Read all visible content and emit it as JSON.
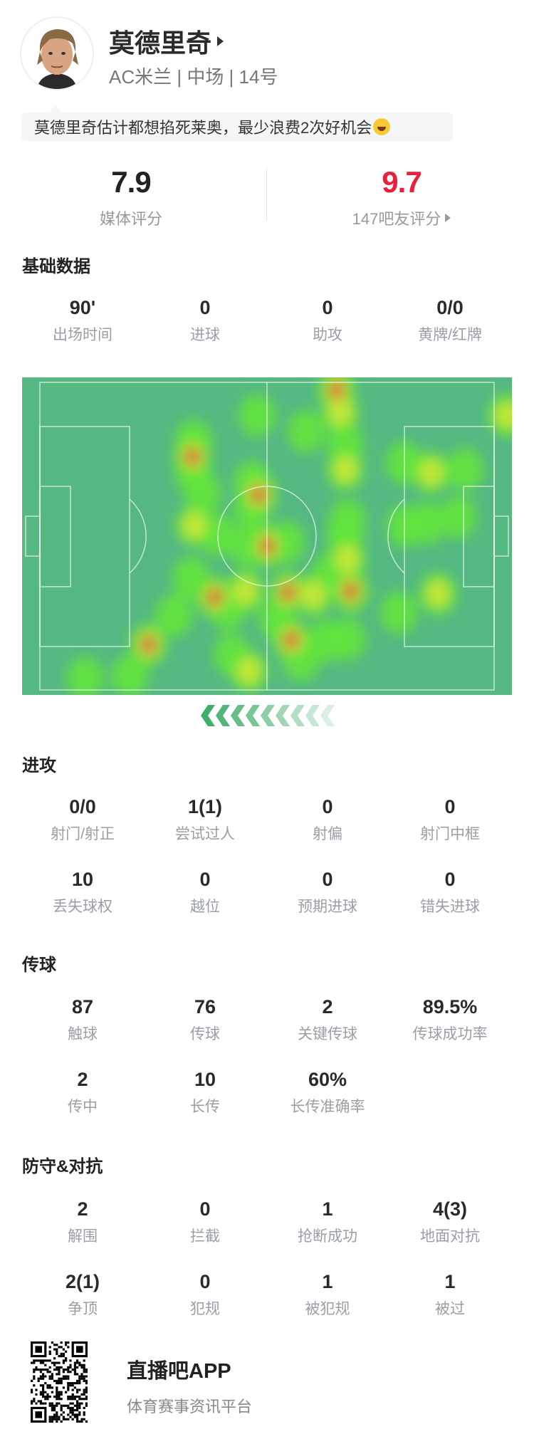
{
  "player": {
    "name": "莫德里奇",
    "subtitle": "AC米兰 | 中场 | 14号",
    "comment": "莫德里奇估计都想掐死莱奥，最少浪费2次好机会",
    "comment_emoji": "laughing-tears-emoji-icon"
  },
  "ratings": {
    "media_value": "7.9",
    "media_label": "媒体评分",
    "fan_value": "9.7",
    "fan_label": "147吧友评分",
    "fan_color": "#e8203a"
  },
  "basic": {
    "title": "基础数据",
    "items": [
      {
        "v": "90'",
        "l": "出场时间"
      },
      {
        "v": "0",
        "l": "进球"
      },
      {
        "v": "0",
        "l": "助攻"
      },
      {
        "v": "0/0",
        "l": "黄牌/红牌"
      }
    ]
  },
  "heatmap": {
    "pitch_color": "#55b882",
    "direction": "left",
    "points": [
      {
        "x": 64.2,
        "y": 4,
        "i": 3
      },
      {
        "x": 65,
        "y": 11,
        "i": 2
      },
      {
        "x": 99,
        "y": 12,
        "i": 2
      },
      {
        "x": 48,
        "y": 12,
        "i": 1
      },
      {
        "x": 35,
        "y": 20,
        "i": 1
      },
      {
        "x": 34.8,
        "y": 25,
        "i": 3
      },
      {
        "x": 35,
        "y": 30,
        "i": 1
      },
      {
        "x": 58,
        "y": 17,
        "i": 1
      },
      {
        "x": 66,
        "y": 21,
        "i": 1
      },
      {
        "x": 66,
        "y": 29,
        "i": 2
      },
      {
        "x": 78,
        "y": 27,
        "i": 1
      },
      {
        "x": 83.5,
        "y": 30,
        "i": 2
      },
      {
        "x": 90.4,
        "y": 29,
        "i": 1
      },
      {
        "x": 47,
        "y": 33,
        "i": 1
      },
      {
        "x": 48.3,
        "y": 37,
        "i": 3
      },
      {
        "x": 47,
        "y": 41,
        "i": 1
      },
      {
        "x": 36.9,
        "y": 36.6,
        "i": 1
      },
      {
        "x": 35.2,
        "y": 46.7,
        "i": 2
      },
      {
        "x": 40,
        "y": 49.7,
        "i": 1
      },
      {
        "x": 50.1,
        "y": 53.1,
        "i": 3
      },
      {
        "x": 46,
        "y": 53,
        "i": 1
      },
      {
        "x": 54,
        "y": 52,
        "i": 1
      },
      {
        "x": 66.4,
        "y": 45,
        "i": 1
      },
      {
        "x": 66,
        "y": 50,
        "i": 1
      },
      {
        "x": 78.2,
        "y": 46.7,
        "i": 1
      },
      {
        "x": 82.8,
        "y": 45.9,
        "i": 1
      },
      {
        "x": 89,
        "y": 44,
        "i": 1
      },
      {
        "x": 39.3,
        "y": 69.2,
        "i": 3
      },
      {
        "x": 45.6,
        "y": 67.3,
        "i": 2
      },
      {
        "x": 34.5,
        "y": 63.2,
        "i": 1
      },
      {
        "x": 42,
        "y": 73,
        "i": 1
      },
      {
        "x": 54.3,
        "y": 67.7,
        "i": 3
      },
      {
        "x": 59.5,
        "y": 68.5,
        "i": 2
      },
      {
        "x": 67.1,
        "y": 67.3,
        "i": 3
      },
      {
        "x": 66.4,
        "y": 57.2,
        "i": 2
      },
      {
        "x": 63,
        "y": 62,
        "i": 1
      },
      {
        "x": 84.9,
        "y": 68.1,
        "i": 2
      },
      {
        "x": 76.9,
        "y": 74.1,
        "i": 1
      },
      {
        "x": 31,
        "y": 74.9,
        "i": 1
      },
      {
        "x": 25.8,
        "y": 84.2,
        "i": 3
      },
      {
        "x": 55,
        "y": 82.7,
        "i": 3
      },
      {
        "x": 52,
        "y": 76,
        "i": 1
      },
      {
        "x": 66.4,
        "y": 82.4,
        "i": 1
      },
      {
        "x": 62,
        "y": 83,
        "i": 1
      },
      {
        "x": 46.3,
        "y": 92.5,
        "i": 2
      },
      {
        "x": 42.8,
        "y": 87.3,
        "i": 1
      },
      {
        "x": 22,
        "y": 94,
        "i": 1
      },
      {
        "x": 12.9,
        "y": 94.7,
        "i": 1
      },
      {
        "x": 57,
        "y": 89,
        "i": 1
      }
    ]
  },
  "attack": {
    "title": "进攻",
    "items": [
      {
        "v": "0/0",
        "l": "射门/射正"
      },
      {
        "v": "1(1)",
        "l": "尝试过人"
      },
      {
        "v": "0",
        "l": "射偏"
      },
      {
        "v": "0",
        "l": "射门中框"
      },
      {
        "v": "10",
        "l": "丢失球权"
      },
      {
        "v": "0",
        "l": "越位"
      },
      {
        "v": "0",
        "l": "预期进球"
      },
      {
        "v": "0",
        "l": "错失进球"
      }
    ]
  },
  "passing": {
    "title": "传球",
    "items": [
      {
        "v": "87",
        "l": "触球"
      },
      {
        "v": "76",
        "l": "传球"
      },
      {
        "v": "2",
        "l": "关键传球"
      },
      {
        "v": "89.5%",
        "l": "传球成功率"
      },
      {
        "v": "2",
        "l": "传中"
      },
      {
        "v": "10",
        "l": "长传"
      },
      {
        "v": "60%",
        "l": "长传准确率"
      }
    ]
  },
  "defense": {
    "title": "防守&对抗",
    "items": [
      {
        "v": "2",
        "l": "解围"
      },
      {
        "v": "0",
        "l": "拦截"
      },
      {
        "v": "1",
        "l": "抢断成功"
      },
      {
        "v": "4(3)",
        "l": "地面对抗"
      },
      {
        "v": "2(1)",
        "l": "争顶"
      },
      {
        "v": "0",
        "l": "犯规"
      },
      {
        "v": "1",
        "l": "被犯规"
      },
      {
        "v": "1",
        "l": "被过"
      }
    ]
  },
  "footer": {
    "app_name": "直播吧APP",
    "slogan": "体育赛事资讯平台"
  }
}
